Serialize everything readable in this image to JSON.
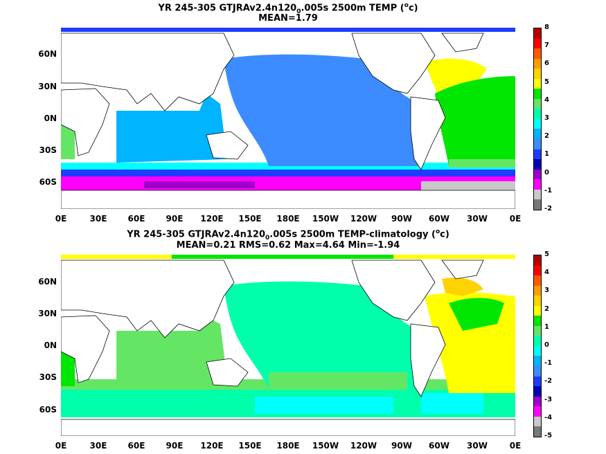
{
  "top": {
    "title_pre": "YR 245-305 GTJRAv2.4n120",
    "title_sub": "0",
    "title_mid": ".005s 2500m TEMP (",
    "title_sup": "o",
    "title_post": "c)",
    "stats": "MEAN=1.79",
    "lat_labels": [
      "60N",
      "30N",
      "0N",
      "30S",
      "60S"
    ],
    "lon_labels": [
      "0E",
      "30E",
      "60E",
      "90E",
      "120E",
      "150E",
      "180E",
      "150W",
      "120W",
      "90W",
      "60W",
      "30W",
      "0E"
    ],
    "colorbar": {
      "labels": [
        "8",
        "7",
        "6",
        "5",
        "4",
        "3",
        "2",
        "1",
        "0",
        "-1",
        "-2"
      ],
      "colors": [
        "#b40000",
        "#ff0000",
        "#ff5a00",
        "#ff9b00",
        "#ffd200",
        "#ffff00",
        "#00e600",
        "#64e664",
        "#00ffaa",
        "#00ffff",
        "#00b4ff",
        "#3c8cff",
        "#1e3cff",
        "#0000b4",
        "#a000c8",
        "#ff00ff",
        "#c8c8c8",
        "#787878"
      ]
    }
  },
  "bottom": {
    "title_pre": "YR 245-305 GTJRAv2.4n120",
    "title_sub": "0",
    "title_mid": ".005s 2500m TEMP-climatology (",
    "title_sup": "o",
    "title_post": "c)",
    "stats": "MEAN=0.21   RMS=0.62   Max=4.64   Min=-1.94",
    "lat_labels": [
      "60N",
      "30N",
      "0N",
      "30S",
      "60S"
    ],
    "lon_labels": [
      "0E",
      "30E",
      "60E",
      "90E",
      "120E",
      "150E",
      "180E",
      "150W",
      "120W",
      "90W",
      "60W",
      "30W",
      "0E"
    ],
    "colorbar": {
      "labels": [
        "5",
        "4",
        "3",
        "2",
        "1",
        "0",
        "-1",
        "-2",
        "-3",
        "-4",
        "-5"
      ],
      "colors": [
        "#b40000",
        "#ff0000",
        "#ff5a00",
        "#ff9b00",
        "#ffd200",
        "#ffff00",
        "#00e600",
        "#64e664",
        "#00ffaa",
        "#00ffff",
        "#00b4ff",
        "#3c8cff",
        "#1e3cff",
        "#0000b4",
        "#a000c8",
        "#ff00ff",
        "#c8c8c8",
        "#787878"
      ]
    }
  },
  "colors": {
    "land": "#ffffff",
    "coast": "#000000",
    "top_pacific": "#3c8cff",
    "top_atlantic": "#00e600",
    "top_north_atlantic": "#ffff00",
    "top_indian": "#00b4ff",
    "top_southern": "#00ffff",
    "bottom_pacific": "#00ffaa",
    "bottom_indian": "#64e664",
    "bottom_atlantic": "#ffff00",
    "bottom_southern": "#00ffff"
  }
}
